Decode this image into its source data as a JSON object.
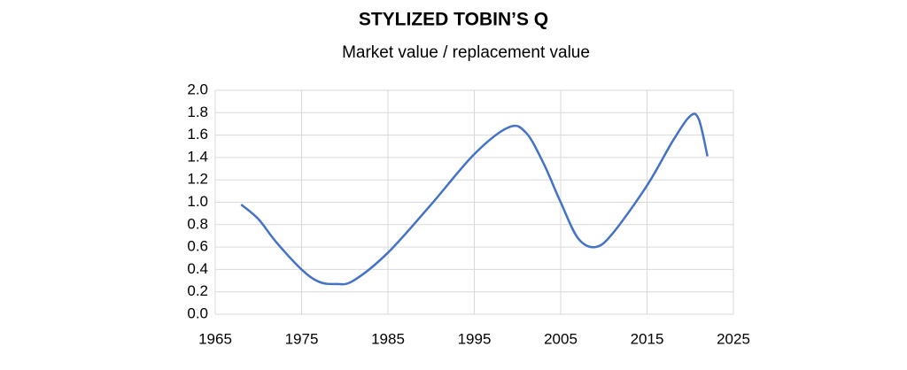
{
  "chart_data": {
    "type": "line",
    "title": "STYLIZED TOBIN’S Q",
    "subtitle": "Market value / replacement value",
    "x": [
      1968,
      1970,
      1972,
      1975,
      1977,
      1979,
      1981,
      1985,
      1990,
      1995,
      1999,
      2001,
      2003,
      2005,
      2007,
      2009,
      2011,
      2015,
      2018,
      2020,
      2021,
      2022
    ],
    "series": [
      {
        "name": "Tobin's Q",
        "color": "#4472c4",
        "values": [
          0.98,
          0.85,
          0.65,
          0.4,
          0.29,
          0.27,
          0.3,
          0.55,
          0.98,
          1.43,
          1.67,
          1.62,
          1.35,
          1.0,
          0.68,
          0.6,
          0.72,
          1.15,
          1.55,
          1.77,
          1.74,
          1.41
        ]
      }
    ],
    "xlim": [
      1965,
      2025
    ],
    "xticks": [
      1965,
      1975,
      1985,
      1995,
      2005,
      2015,
      2025
    ],
    "ylim": [
      0,
      2
    ],
    "yticks": [
      {
        "value": 0,
        "label": "0.0"
      },
      0.2,
      0.4,
      0.6,
      0.8,
      {
        "value": 1,
        "label": "1.0"
      },
      1.2,
      1.4,
      1.6,
      1.8,
      {
        "value": 2,
        "label": "2.0"
      }
    ],
    "grid": true
  }
}
